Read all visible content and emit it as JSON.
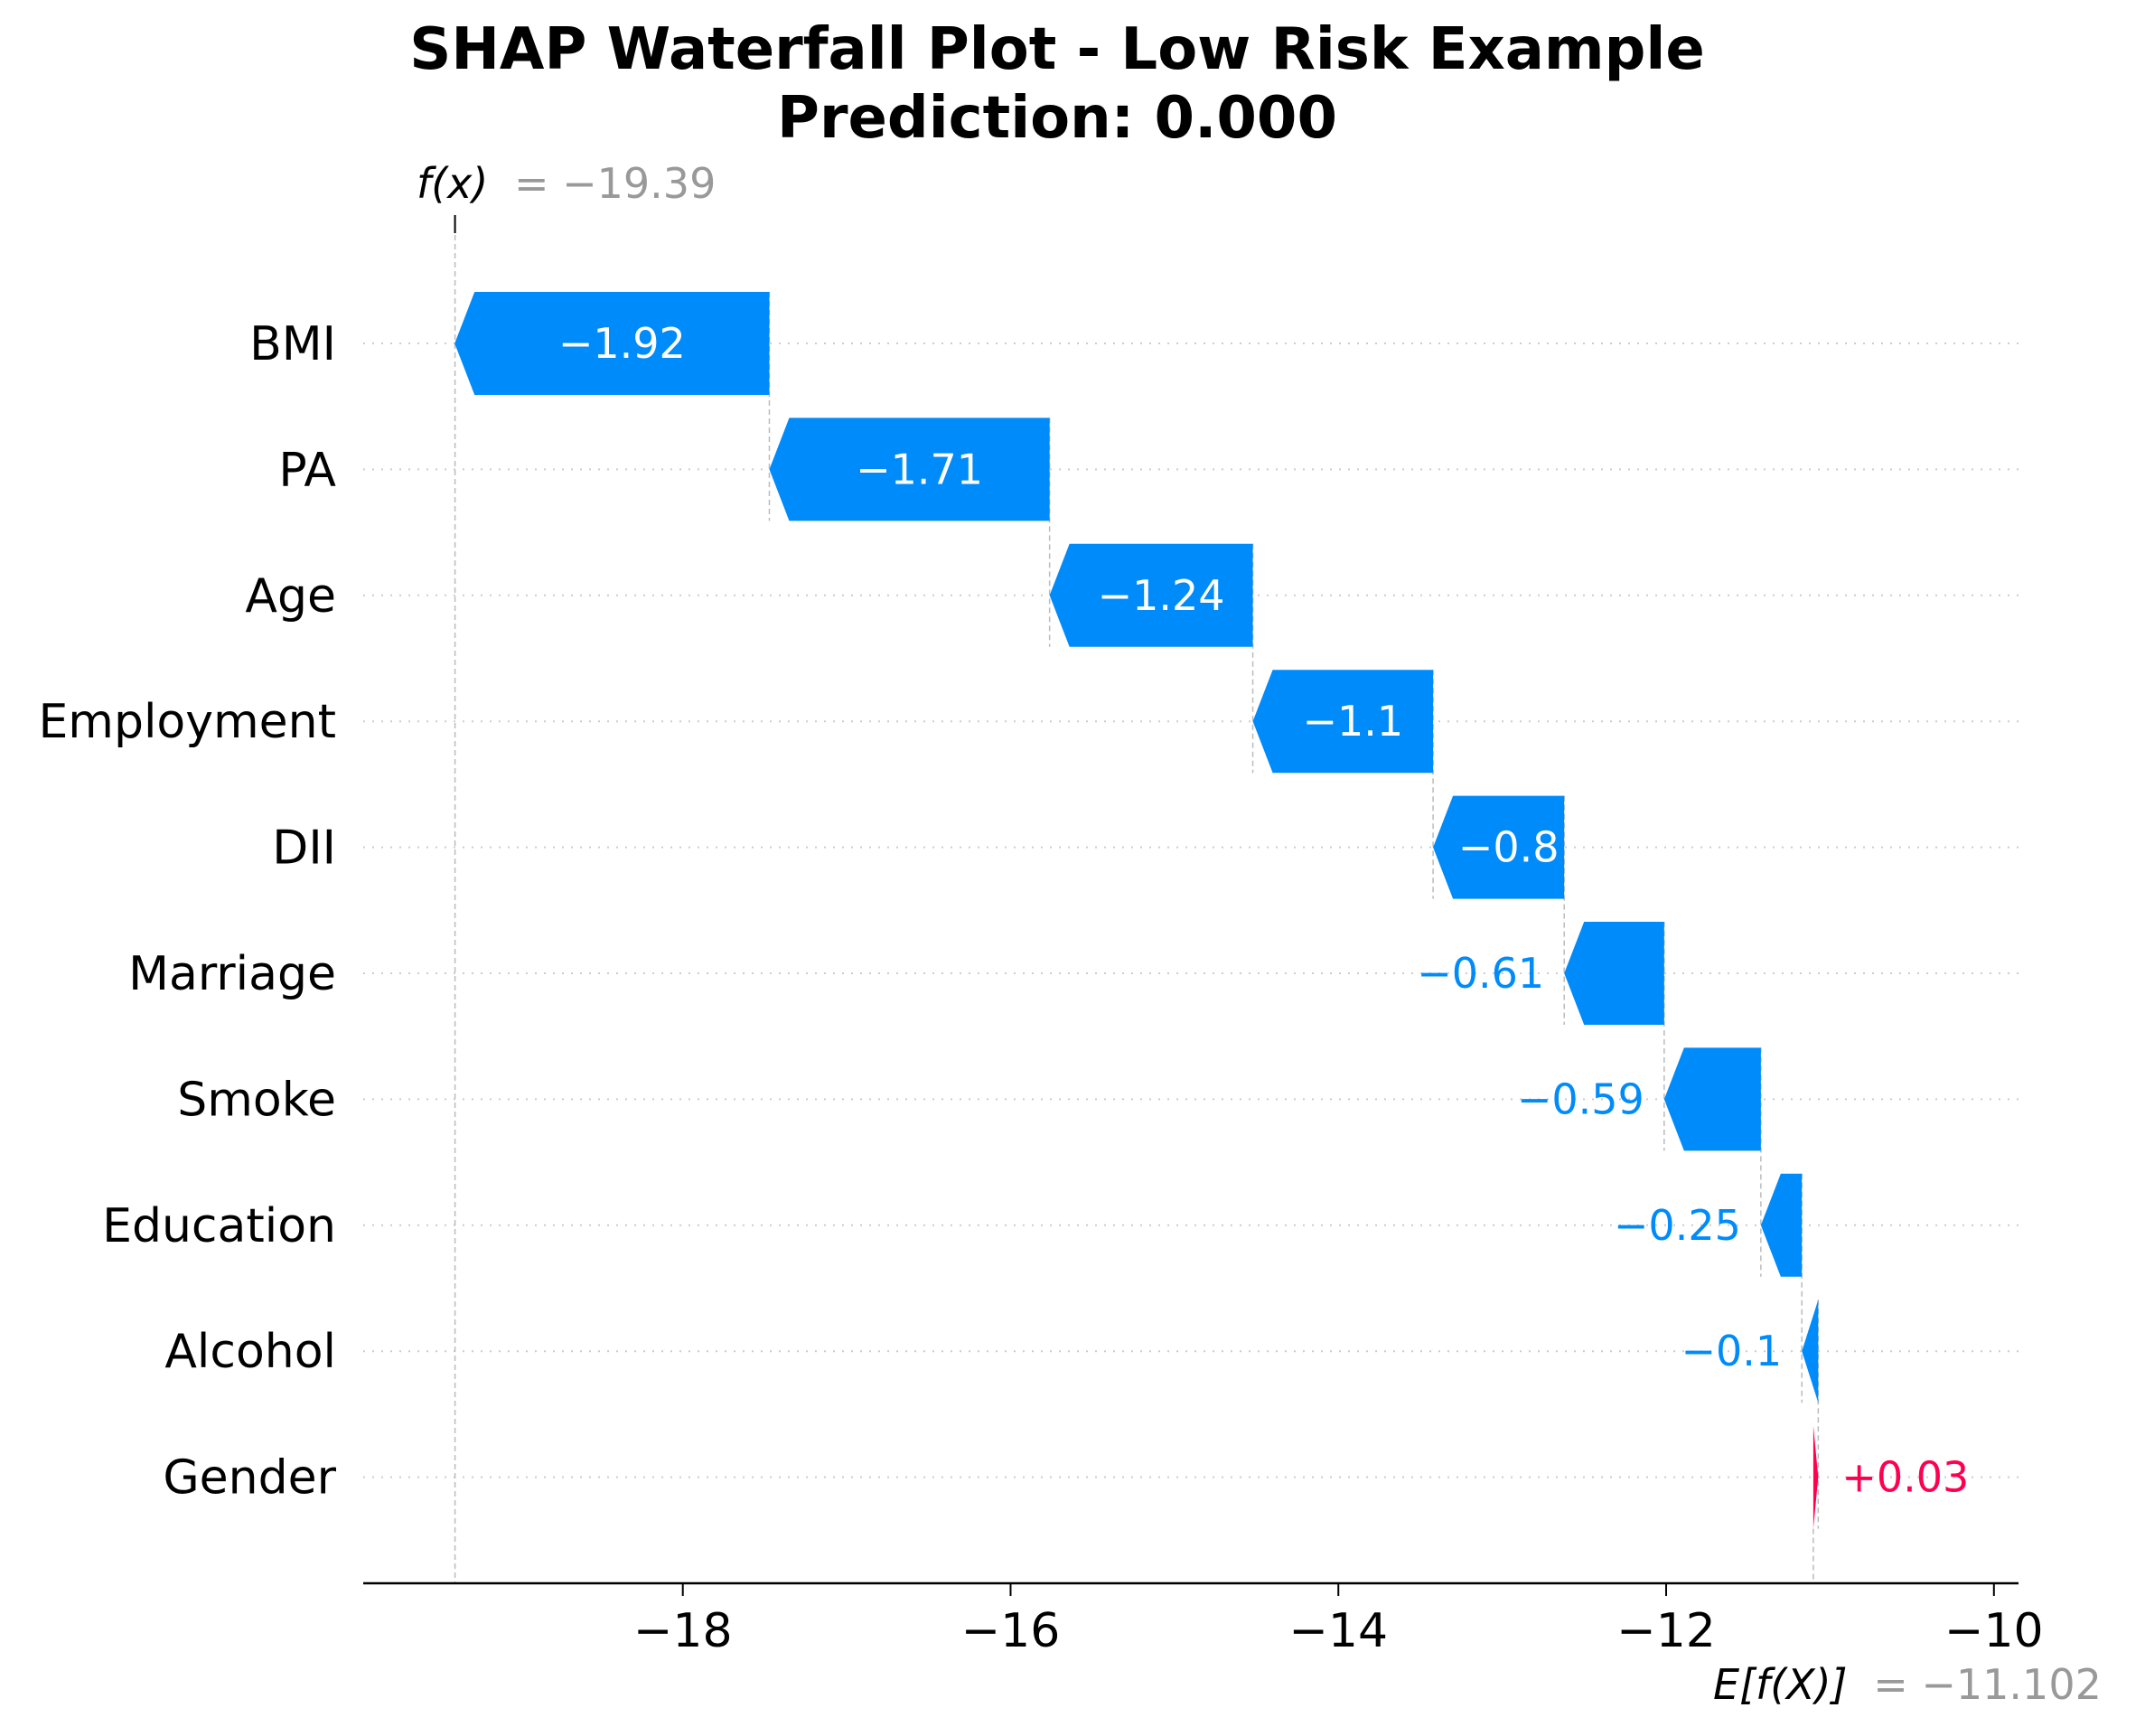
{
  "chart_data": {
    "type": "bar",
    "title": "SHAP Waterfall Plot - Low Risk Example",
    "subtitle": "Prediction: 0.000",
    "xlim": [
      -19.95,
      -9.85
    ],
    "xticks": [
      -18,
      -16,
      -14,
      -12,
      -10
    ],
    "tick_labels": [
      "−18",
      "−16",
      "−14",
      "−12",
      "−10"
    ],
    "features": [
      "BMI",
      "PA",
      "Age",
      "Employment",
      "DII",
      "Marriage",
      "Smoke",
      "Education",
      "Alcohol",
      "Gender"
    ],
    "values": [
      -1.92,
      -1.71,
      -1.24,
      -1.1,
      -0.8,
      -0.61,
      -0.59,
      -0.25,
      -0.1,
      0.03
    ],
    "value_labels": [
      "−1.92",
      "−1.71",
      "−1.24",
      "−1.1",
      "−0.8",
      "−0.61",
      "−0.59",
      "−0.25",
      "−0.1",
      "+0.03"
    ],
    "fx": {
      "value": -19.39,
      "name": "f(x)",
      "label": "= −19.39"
    },
    "base": {
      "value": -11.102,
      "name": "E[f(X)]",
      "label": "= −11.102"
    },
    "colors": {
      "negative": "#008bfb",
      "positive": "#ff0051",
      "annotation": "#999999",
      "grid": "#cccccc"
    }
  }
}
